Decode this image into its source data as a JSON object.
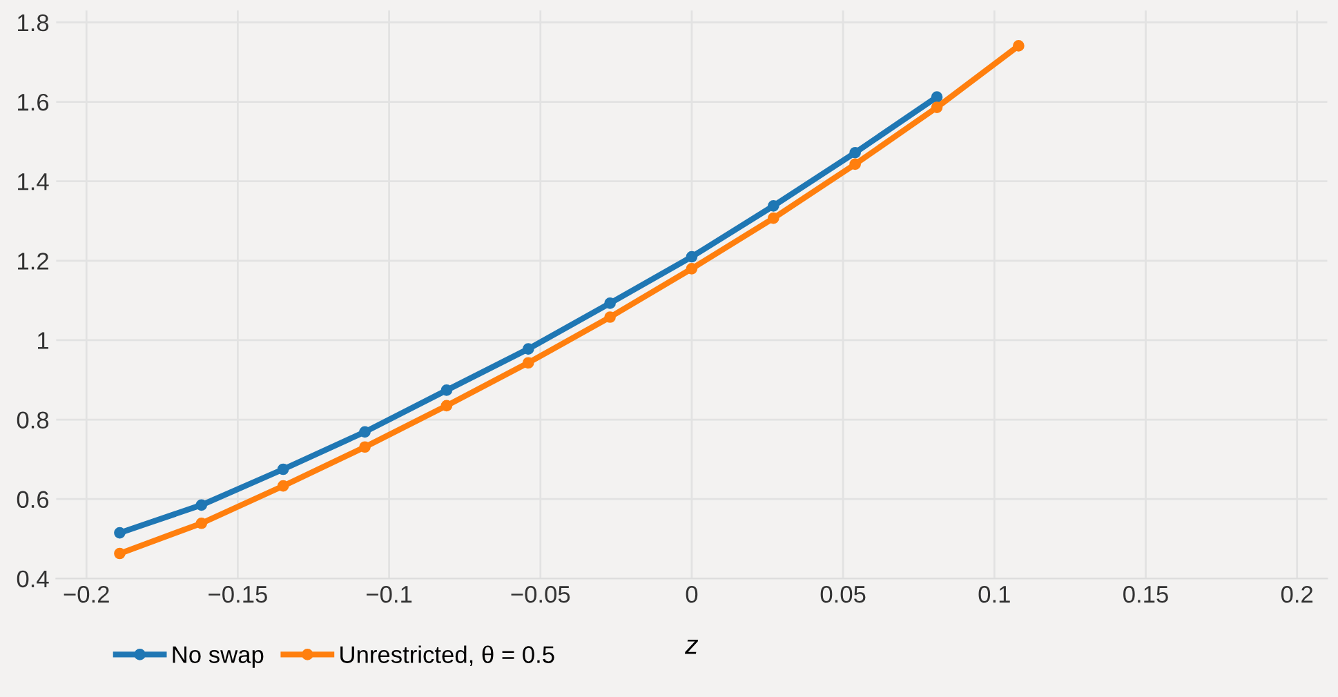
{
  "chart_data": {
    "type": "line",
    "xlabel": "z",
    "series": [
      {
        "name": "No swap",
        "color": "#1f77b4",
        "x": [
          -0.189,
          -0.162,
          -0.135,
          -0.108,
          -0.081,
          -0.054,
          -0.027,
          0,
          0.027,
          0.054,
          0.081
        ],
        "values": [
          0.515,
          0.585,
          0.675,
          0.769,
          0.874,
          0.978,
          1.093,
          1.21,
          1.338,
          1.472,
          1.612
        ]
      },
      {
        "name": "Unrestricted, θ = 0.5",
        "color": "#ff7f0e",
        "x": [
          -0.189,
          -0.162,
          -0.135,
          -0.108,
          -0.081,
          -0.054,
          -0.027,
          0,
          0.027,
          0.054,
          0.081,
          0.108
        ],
        "values": [
          0.463,
          0.539,
          0.633,
          0.731,
          0.835,
          0.943,
          1.058,
          1.18,
          1.307,
          1.443,
          1.586,
          1.741
        ]
      }
    ],
    "xlim": [
      -0.21,
      0.21
    ],
    "xticks": [
      {
        "value": -0.2,
        "label": "−0.2"
      },
      {
        "value": -0.15,
        "label": "−0.15"
      },
      {
        "value": -0.1,
        "label": "−0.1"
      },
      {
        "value": -0.05,
        "label": "−0.05"
      },
      0,
      0.05,
      0.1,
      0.15,
      0.2
    ],
    "ylim": [
      0.4,
      1.83
    ],
    "yticks": [
      0.4,
      0.6,
      0.8,
      1,
      1.2,
      1.4,
      1.6,
      1.8
    ],
    "grid": true,
    "legend": "bottom left",
    "marker": "circle",
    "line_style": "solid"
  }
}
